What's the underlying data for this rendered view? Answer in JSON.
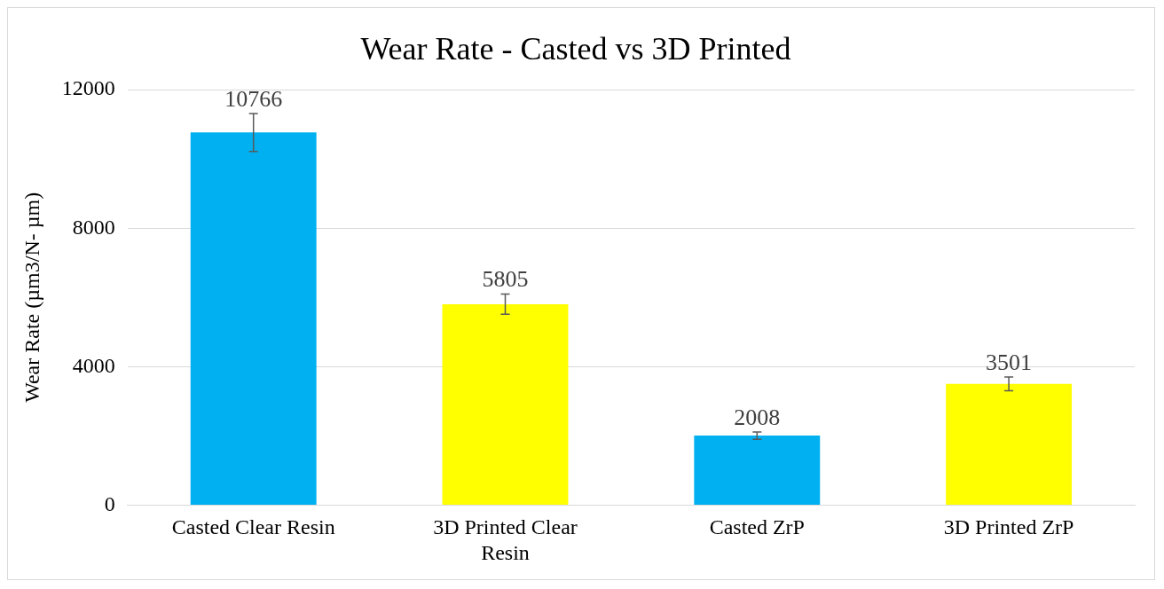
{
  "chart_data": {
    "type": "bar",
    "title": "Wear Rate - Casted vs 3D Printed",
    "ylabel": "Wear Rate (µm3/N- µm)",
    "categories": [
      "Casted Clear Resin",
      "3D Printed Clear Resin",
      "Casted ZrP",
      "3D Printed ZrP"
    ],
    "values": [
      10766,
      5805,
      2008,
      3501
    ],
    "colors": [
      "#00b0f0",
      "#ffff00",
      "#00b0f0",
      "#ffff00"
    ],
    "errors": [
      550,
      290,
      105,
      200
    ],
    "ylim": [
      0,
      12000
    ],
    "yticks": [
      0,
      4000,
      8000,
      12000
    ],
    "grid": "y",
    "data_labels": true,
    "legend": false
  }
}
